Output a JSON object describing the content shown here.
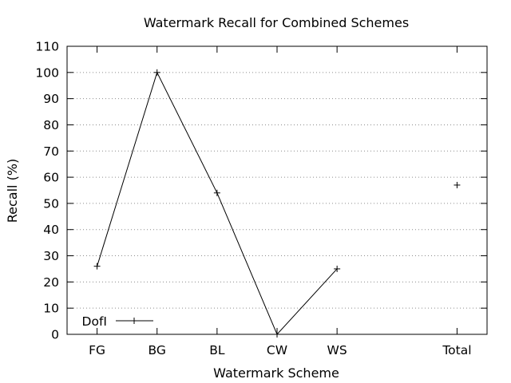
{
  "chart_data": {
    "type": "line",
    "title": "Watermark Recall for Combined Schemes",
    "xlabel": "Watermark Scheme",
    "ylabel": "Recall (%)",
    "ylim": [
      0,
      110
    ],
    "yticks": [
      0,
      10,
      20,
      30,
      40,
      50,
      60,
      70,
      80,
      90,
      100,
      110
    ],
    "categories": [
      "FG",
      "BG",
      "BL",
      "CW",
      "WS",
      "Total"
    ],
    "category_positions": [
      1,
      2,
      3,
      4,
      5,
      7
    ],
    "xlim": [
      0.5,
      7.5
    ],
    "grid": "horizontal dotted",
    "legend_position": "bottom-left",
    "series": [
      {
        "name": "DofI",
        "points": [
          {
            "x": "FG",
            "y": 26
          },
          {
            "x": "BG",
            "y": 100
          },
          {
            "x": "BL",
            "y": 54
          },
          {
            "x": "CW",
            "y": 0
          },
          {
            "x": "WS",
            "y": 25
          },
          {
            "x": "Total",
            "y": 57
          }
        ],
        "line_break_before": [
          "Total"
        ],
        "color": "#000000",
        "marker": "+"
      }
    ]
  }
}
